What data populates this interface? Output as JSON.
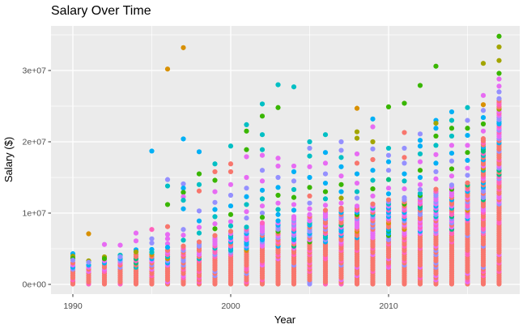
{
  "chart_data": {
    "type": "scatter",
    "title": "Salary Over Time",
    "xlabel": "Year",
    "ylabel": "Salary ($)",
    "value_unit_dollars": 1000000,
    "x_ticks": [
      {
        "label": "1990",
        "year": 1990
      },
      {
        "label": "2000",
        "year": 2000
      },
      {
        "label": "2010",
        "year": 2010
      }
    ],
    "x_minor": [
      1995,
      2005,
      2015
    ],
    "y_ticks": [
      {
        "label": "0e+00",
        "m": 0
      },
      {
        "label": "1e+07",
        "m": 10
      },
      {
        "label": "2e+07",
        "m": 20
      },
      {
        "label": "3e+07",
        "m": 30
      }
    ],
    "y_minor_m": [
      5,
      15,
      25,
      35
    ],
    "xlim_years": [
      1988.6,
      2018.3
    ],
    "ylim_m": [
      -1.3,
      36.2
    ],
    "grid": true,
    "legend": "none",
    "colors": {
      "figure_bg": "#ffffff",
      "panel_bg": "#ebebeb",
      "gridline": "#ffffff",
      "tick_mark": "#333333",
      "tick_text": "#4d4d4d",
      "title_text": "#000000"
    },
    "palette_names": [
      "red",
      "orange",
      "olive",
      "green",
      "spring-green",
      "teal",
      "blue",
      "purple",
      "magenta",
      "pink"
    ],
    "palette": [
      "#F8766D",
      "#D89000",
      "#A3A500",
      "#39B600",
      "#00BF7D",
      "#00BFC4",
      "#00B0F6",
      "#9590FF",
      "#E76BF3",
      "#FF62BC"
    ],
    "point_radius_px": 3.1,
    "columns_note": "dense = top of contiguous point mass in $M (mass runs 0..dense); pts = separated points above mass as [salary_$M, palette_index]",
    "columns": [
      {
        "year": 1990,
        "dense": 3.2,
        "pts": [
          [
            4.3,
            6
          ],
          [
            3.95,
            2
          ],
          [
            3.65,
            3
          ],
          [
            3.4,
            7
          ]
        ]
      },
      {
        "year": 1991,
        "dense": 2.9,
        "pts": [
          [
            7.1,
            1
          ],
          [
            3.3,
            2
          ],
          [
            3.1,
            7
          ]
        ]
      },
      {
        "year": 1992,
        "dense": 3.4,
        "pts": [
          [
            5.6,
            8
          ],
          [
            3.85,
            2
          ],
          [
            3.6,
            3
          ]
        ]
      },
      {
        "year": 1993,
        "dense": 3.6,
        "pts": [
          [
            5.5,
            8
          ],
          [
            4.1,
            5
          ],
          [
            3.85,
            7
          ]
        ]
      },
      {
        "year": 1994,
        "dense": 4.3,
        "pts": [
          [
            7.2,
            8
          ],
          [
            6.1,
            8
          ],
          [
            4.85,
            6
          ],
          [
            4.55,
            2
          ]
        ]
      },
      {
        "year": 1995,
        "dense": 4.2,
        "pts": [
          [
            18.7,
            6
          ],
          [
            7.7,
            9
          ],
          [
            6.4,
            7
          ],
          [
            5.8,
            7
          ],
          [
            4.9,
            6
          ],
          [
            4.5,
            5
          ]
        ]
      },
      {
        "year": 1996,
        "dense": 4.9,
        "pts": [
          [
            30.2,
            1
          ],
          [
            14.7,
            7
          ],
          [
            13.8,
            5
          ],
          [
            11.2,
            3
          ],
          [
            8.1,
            0
          ],
          [
            7.0,
            8
          ],
          [
            6.4,
            8
          ],
          [
            5.7,
            8
          ],
          [
            5.2,
            6
          ]
        ]
      },
      {
        "year": 1997,
        "dense": 5.4,
        "pts": [
          [
            33.2,
            1
          ],
          [
            20.4,
            6
          ],
          [
            14.1,
            7
          ],
          [
            13.5,
            6
          ],
          [
            12.9,
            3
          ],
          [
            12.3,
            8
          ],
          [
            11.8,
            5
          ],
          [
            10.6,
            6
          ],
          [
            7.7,
            7
          ],
          [
            6.9,
            8
          ],
          [
            6.2,
            5
          ]
        ]
      },
      {
        "year": 1998,
        "dense": 6.2,
        "pts": [
          [
            18.6,
            6
          ],
          [
            15.5,
            3
          ],
          [
            14.0,
            5
          ],
          [
            13.1,
            0
          ],
          [
            10.3,
            7
          ],
          [
            8.9,
            6
          ],
          [
            8.0,
            8
          ],
          [
            7.2,
            5
          ]
        ]
      },
      {
        "year": 1999,
        "dense": 7.0,
        "pts": [
          [
            16.9,
            5
          ],
          [
            15.8,
            0
          ],
          [
            14.6,
            3
          ],
          [
            13.0,
            8
          ],
          [
            11.5,
            7
          ],
          [
            10.5,
            6
          ],
          [
            9.5,
            5
          ],
          [
            8.5,
            8
          ],
          [
            7.8,
            3
          ]
        ]
      },
      {
        "year": 2000,
        "dense": 7.6,
        "pts": [
          [
            19.4,
            5
          ],
          [
            16.9,
            0
          ],
          [
            15.8,
            0
          ],
          [
            14.0,
            8
          ],
          [
            12.5,
            7
          ],
          [
            11.0,
            6
          ],
          [
            9.8,
            3
          ],
          [
            8.8,
            8
          ],
          [
            8.2,
            5
          ]
        ]
      },
      {
        "year": 2001,
        "dense": 8.2,
        "pts": [
          [
            22.4,
            5
          ],
          [
            21.5,
            3
          ],
          [
            18.9,
            3
          ],
          [
            17.9,
            8
          ],
          [
            15.0,
            8
          ],
          [
            13.5,
            7
          ],
          [
            12.3,
            6
          ],
          [
            11.2,
            5
          ],
          [
            10.2,
            8
          ],
          [
            9.3,
            7
          ]
        ]
      },
      {
        "year": 2002,
        "dense": 8.8,
        "pts": [
          [
            25.3,
            5
          ],
          [
            23.6,
            3
          ],
          [
            21.0,
            5
          ],
          [
            18.9,
            5
          ],
          [
            18.1,
            8
          ],
          [
            16.0,
            7
          ],
          [
            14.5,
            8
          ],
          [
            13.2,
            6
          ],
          [
            12.0,
            5
          ],
          [
            11.0,
            8
          ],
          [
            10.0,
            7
          ],
          [
            9.4,
            3
          ]
        ]
      },
      {
        "year": 2003,
        "dense": 9.2,
        "pts": [
          [
            28.0,
            5
          ],
          [
            24.8,
            3
          ],
          [
            17.7,
            8
          ],
          [
            16.6,
            8
          ],
          [
            15.0,
            7
          ],
          [
            13.6,
            6
          ],
          [
            12.5,
            3
          ],
          [
            11.4,
            8
          ],
          [
            10.5,
            5
          ],
          [
            9.8,
            6
          ]
        ]
      },
      {
        "year": 2004,
        "dense": 9.6,
        "pts": [
          [
            27.7,
            5
          ],
          [
            16.6,
            8
          ],
          [
            15.8,
            6
          ],
          [
            14.5,
            7
          ],
          [
            13.3,
            5
          ],
          [
            12.2,
            3
          ],
          [
            11.2,
            8
          ],
          [
            10.4,
            6
          ]
        ]
      },
      {
        "year": 2005,
        "dense": 10.0,
        "pts": [
          [
            20.0,
            5
          ],
          [
            19.1,
            7
          ],
          [
            18.0,
            5
          ],
          [
            16.5,
            8
          ],
          [
            15.0,
            6
          ],
          [
            13.6,
            3
          ],
          [
            12.4,
            0
          ],
          [
            11.4,
            7
          ],
          [
            10.6,
            8
          ]
        ]
      },
      {
        "year": 2006,
        "dense": 10.4,
        "pts": [
          [
            21.0,
            5
          ],
          [
            18.5,
            6
          ],
          [
            17.0,
            8
          ],
          [
            15.5,
            7
          ],
          [
            14.2,
            6
          ],
          [
            13.0,
            3
          ],
          [
            12.0,
            5
          ],
          [
            11.1,
            8
          ]
        ]
      },
      {
        "year": 2007,
        "dense": 10.8,
        "pts": [
          [
            20.0,
            7
          ],
          [
            18.8,
            7
          ],
          [
            17.8,
            5
          ],
          [
            16.5,
            6
          ],
          [
            15.2,
            8
          ],
          [
            14.0,
            3
          ],
          [
            13.0,
            6
          ],
          [
            12.1,
            2
          ],
          [
            11.4,
            8
          ]
        ]
      },
      {
        "year": 2008,
        "dense": 11.2,
        "pts": [
          [
            24.7,
            1
          ],
          [
            21.4,
            2
          ],
          [
            20.5,
            2
          ],
          [
            18.3,
            8
          ],
          [
            17.0,
            0
          ],
          [
            15.5,
            6
          ],
          [
            14.2,
            8
          ],
          [
            13.0,
            5
          ],
          [
            12.1,
            7
          ]
        ]
      },
      {
        "year": 2009,
        "dense": 11.5,
        "pts": [
          [
            23.2,
            6
          ],
          [
            22.1,
            8
          ],
          [
            20.0,
            2
          ],
          [
            19.0,
            7
          ],
          [
            17.5,
            0
          ],
          [
            16.0,
            6
          ],
          [
            14.6,
            5
          ],
          [
            13.4,
            3
          ],
          [
            12.4,
            8
          ]
        ]
      },
      {
        "year": 2010,
        "dense": 12.0,
        "pts": [
          [
            24.9,
            3
          ],
          [
            19.1,
            5
          ],
          [
            18.1,
            7
          ],
          [
            17.2,
            6
          ],
          [
            16.0,
            7
          ],
          [
            14.7,
            4
          ],
          [
            13.5,
            8
          ],
          [
            12.7,
            6
          ]
        ]
      },
      {
        "year": 2011,
        "dense": 12.3,
        "pts": [
          [
            25.4,
            3
          ],
          [
            21.3,
            0
          ],
          [
            19.1,
            7
          ],
          [
            17.8,
            0
          ],
          [
            17.0,
            7
          ],
          [
            15.5,
            6
          ],
          [
            14.5,
            5
          ],
          [
            13.4,
            8
          ]
        ]
      },
      {
        "year": 2012,
        "dense": 12.8,
        "pts": [
          [
            27.9,
            3
          ],
          [
            21.1,
            7
          ],
          [
            20.2,
            6
          ],
          [
            19.4,
            6
          ],
          [
            18.3,
            5
          ],
          [
            17.2,
            8
          ],
          [
            16.0,
            3
          ],
          [
            15.0,
            6
          ],
          [
            14.0,
            8
          ],
          [
            13.3,
            7
          ]
        ]
      },
      {
        "year": 2013,
        "dense": 13.4,
        "pts": [
          [
            30.6,
            3
          ],
          [
            23.0,
            6
          ],
          [
            22.6,
            2
          ],
          [
            21.9,
            6
          ],
          [
            20.8,
            3
          ],
          [
            19.5,
            5
          ],
          [
            18.2,
            8
          ],
          [
            17.0,
            6
          ],
          [
            15.8,
            7
          ],
          [
            14.8,
            8
          ]
        ]
      },
      {
        "year": 2014,
        "dense": 14.0,
        "pts": [
          [
            24.2,
            6
          ],
          [
            23.0,
            5
          ],
          [
            21.9,
            3
          ],
          [
            20.8,
            5
          ],
          [
            19.5,
            8
          ],
          [
            18.4,
            6
          ],
          [
            17.3,
            7
          ],
          [
            16.2,
            3
          ],
          [
            15.2,
            8
          ]
        ]
      },
      {
        "year": 2015,
        "dense": 14.5,
        "pts": [
          [
            24.8,
            5
          ],
          [
            23.0,
            7
          ],
          [
            21.9,
            3
          ],
          [
            20.9,
            6
          ],
          [
            19.5,
            8
          ],
          [
            18.5,
            3
          ],
          [
            17.4,
            6
          ],
          [
            16.3,
            8
          ],
          [
            15.3,
            7
          ]
        ]
      },
      {
        "year": 2016,
        "dense": 20.5,
        "pts": [
          [
            31.0,
            2
          ],
          [
            26.5,
            8
          ],
          [
            25.2,
            1
          ],
          [
            24.4,
            7
          ],
          [
            23.4,
            6
          ],
          [
            22.5,
            3
          ],
          [
            21.5,
            8
          ]
        ]
      },
      {
        "year": 2017,
        "dense": 26.2,
        "pts": [
          [
            34.8,
            3
          ],
          [
            33.3,
            2
          ],
          [
            31.4,
            2
          ],
          [
            29.6,
            3
          ],
          [
            28.8,
            8
          ],
          [
            27.8,
            8
          ],
          [
            27.0,
            7
          ]
        ]
      }
    ]
  }
}
